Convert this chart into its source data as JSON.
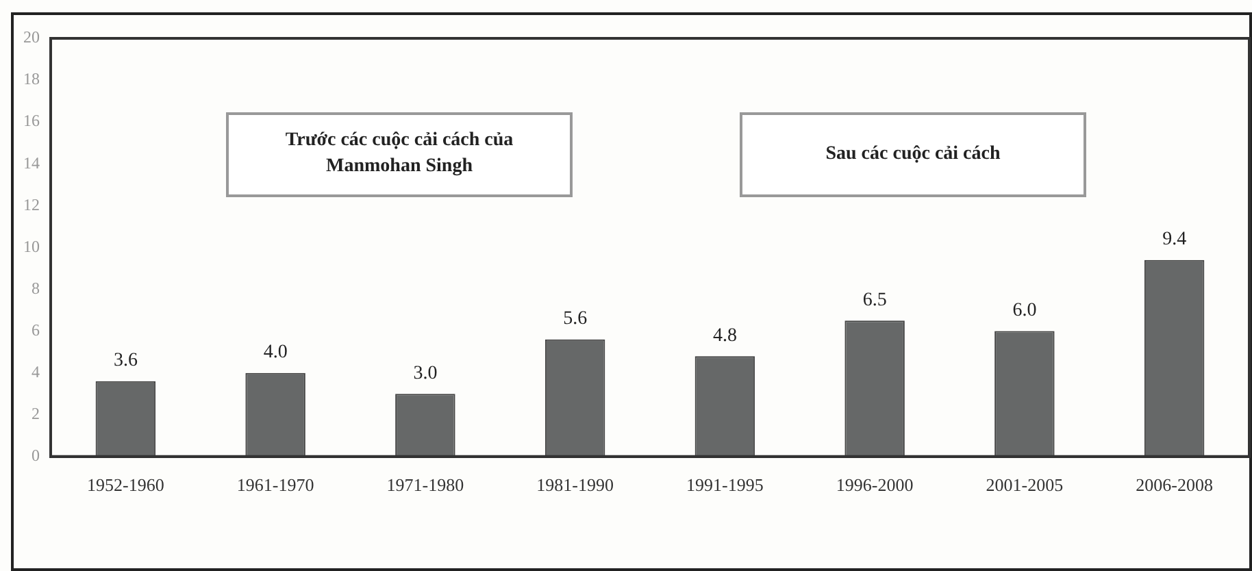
{
  "chart_data": {
    "type": "bar",
    "categories": [
      "1952-1960",
      "1961-1970",
      "1971-1980",
      "1981-1990",
      "1991-1995",
      "1996-2000",
      "2001-2005",
      "2006-2008"
    ],
    "values": [
      3.6,
      4.0,
      3.0,
      5.6,
      4.8,
      6.5,
      6.0,
      9.4
    ],
    "value_labels": [
      "3.6",
      "4.0",
      "3.0",
      "5.6",
      "4.8",
      "6.5",
      "6.0",
      "9.4"
    ],
    "color": "#666868",
    "ylim": [
      0,
      20
    ],
    "yticks": [
      0,
      2,
      4,
      6,
      8,
      10,
      12,
      14,
      16,
      18,
      20
    ],
    "grid": false,
    "legend": false,
    "annotations": [
      "Trước các cuộc cải cách của Manmohan Singh",
      "Sau các cuộc cải cách"
    ]
  }
}
